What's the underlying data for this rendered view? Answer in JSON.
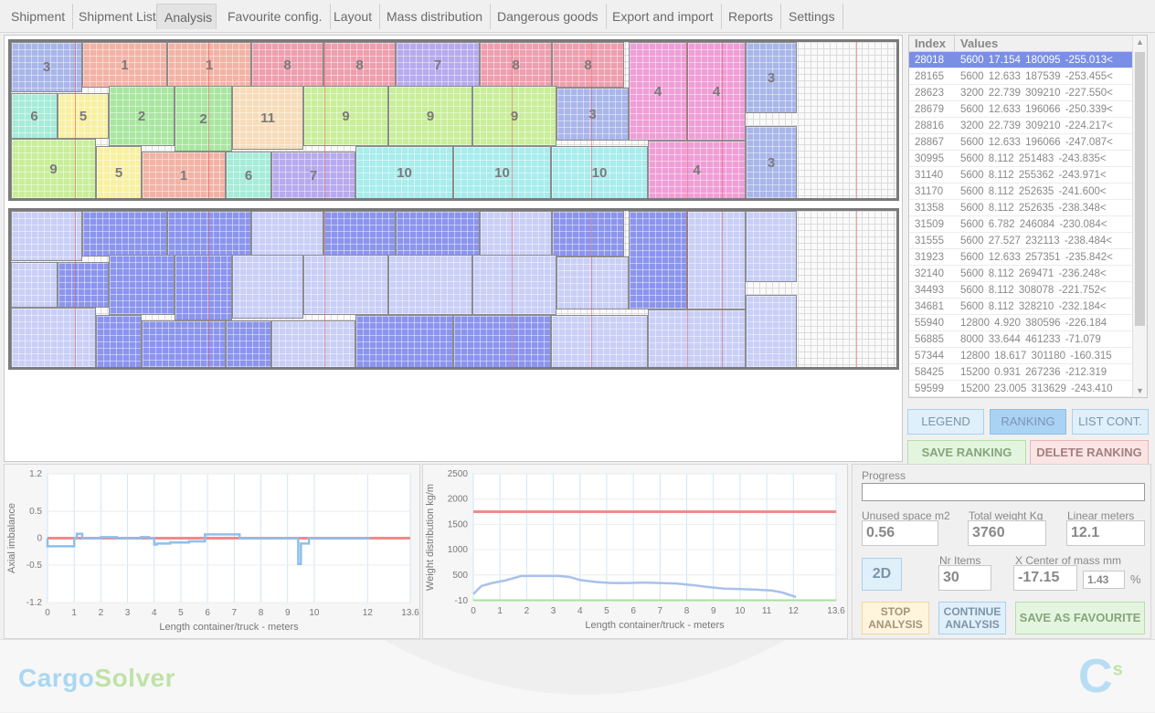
{
  "tabs": [
    {
      "label": "Shipment"
    },
    {
      "label": "Shipment List"
    },
    {
      "label": "Analysis"
    },
    {
      "label": "Favourite config."
    },
    {
      "label": "Layout"
    },
    {
      "label": "Mass distribution"
    },
    {
      "label": "Dangerous goods"
    },
    {
      "label": "Export and import"
    },
    {
      "label": "Reports"
    },
    {
      "label": "Settings"
    }
  ],
  "active_tab": "Analysis",
  "layout_top": {
    "boxes": [
      {
        "label": "3",
        "color": "#a9b6ea"
      },
      {
        "label": "1",
        "color": "#f2b3a6"
      },
      {
        "label": "1",
        "color": "#f2b3a6"
      },
      {
        "label": "8",
        "color": "#ee9fae"
      },
      {
        "label": "8",
        "color": "#ee9fae"
      },
      {
        "label": "7",
        "color": "#b7aaee"
      },
      {
        "label": "8",
        "color": "#ee9fae"
      },
      {
        "label": "8",
        "color": "#ee9fae"
      },
      {
        "label": "4",
        "color": "#ef9ed7"
      },
      {
        "label": "4",
        "color": "#ef9ed7"
      },
      {
        "label": "3",
        "color": "#a9b6ea"
      },
      {
        "label": "6",
        "color": "#a6ecd8"
      },
      {
        "label": "5",
        "color": "#f7f0a2"
      },
      {
        "label": "2",
        "color": "#a9e6a0"
      },
      {
        "label": "2",
        "color": "#a9e6a0"
      },
      {
        "label": "11",
        "color": "#f7dcba"
      },
      {
        "label": "9",
        "color": "#c9ee9a"
      },
      {
        "label": "9",
        "color": "#c9ee9a"
      },
      {
        "label": "9",
        "color": "#c9ee9a"
      },
      {
        "label": "3",
        "color": "#a9b6ea"
      },
      {
        "label": "9",
        "color": "#c9ee9a"
      },
      {
        "label": "5",
        "color": "#f7f0a2"
      },
      {
        "label": "1",
        "color": "#f2b3a6"
      },
      {
        "label": "6",
        "color": "#a6ecd8"
      },
      {
        "label": "7",
        "color": "#b7aaee"
      },
      {
        "label": "10",
        "color": "#a8ecec"
      },
      {
        "label": "10",
        "color": "#a8ecec"
      },
      {
        "label": "10",
        "color": "#a8ecec"
      },
      {
        "label": "4",
        "color": "#ef9ed7"
      },
      {
        "label": "3",
        "color": "#a9b6ea"
      }
    ]
  },
  "ranking": {
    "header_index": "Index",
    "header_values": "Values",
    "rows": [
      {
        "index": "28018",
        "values": "5600  17.154  180095  -255.013<"
      },
      {
        "index": "28165",
        "values": "5600  12.633  187539  -253.455<"
      },
      {
        "index": "28623",
        "values": "3200  22.739  309210  -227.550<"
      },
      {
        "index": "28679",
        "values": "5600  12.633  196066  -250.339<"
      },
      {
        "index": "28816",
        "values": "3200  22.739  309210  -224.217<"
      },
      {
        "index": "28867",
        "values": "5600  12.633  196066  -247.087<"
      },
      {
        "index": "30995",
        "values": "5600  8.112  251483  -243.835<"
      },
      {
        "index": "31140",
        "values": "5600  8.112  255362  -243.971<"
      },
      {
        "index": "31170",
        "values": "5600  8.112  252635  -241.600<"
      },
      {
        "index": "31358",
        "values": "5600  8.112  252635  -238.348<"
      },
      {
        "index": "31509",
        "values": "5600  6.782  246084  -230.084<"
      },
      {
        "index": "31555",
        "values": "5600  27.527  232113  -238.484<"
      },
      {
        "index": "31923",
        "values": "5600  12.633  257351  -235.842<"
      },
      {
        "index": "32140",
        "values": "5600  8.112  269471  -236.248<"
      },
      {
        "index": "34493",
        "values": "5600  8.112  308078  -221.752<"
      },
      {
        "index": "34681",
        "values": "5600  8.112  328210  -232.184<"
      },
      {
        "index": "55940",
        "values": "12800  4.920  380596  -226.184"
      },
      {
        "index": "56885",
        "values": "8000  33.644  461233  -71.079"
      },
      {
        "index": "57344",
        "values": "12800  18.617  301180  -160.315"
      },
      {
        "index": "58425",
        "values": "15200  0.931  267236  -212.319"
      },
      {
        "index": "59599",
        "values": "15200  23.005  313629  -243.410"
      }
    ]
  },
  "buttons": {
    "legend": "LEGEND",
    "ranking": "RANKING",
    "list_cont": "LIST CONT.",
    "save_ranking": "SAVE RANKING",
    "delete_ranking": "DELETE RANKING",
    "view_2d": "2D",
    "stop_1": "STOP",
    "stop_2": "ANALYSIS",
    "continue_1": "CONTINUE",
    "continue_2": "ANALYSIS",
    "save_favourite": "SAVE AS FAVOURITE"
  },
  "stats": {
    "progress_label": "Progress",
    "progress_value": 0,
    "unused_space_label": "Unused space m2",
    "unused_space": "0.56",
    "total_weight_label": "Total weight Kg",
    "total_weight": "3760",
    "linear_meters_label": "Linear meters",
    "linear_meters": "12.1",
    "nr_items_label": "Nr Items",
    "nr_items": "30",
    "x_center_label": "X Center of mass mm",
    "x_center": "-17.15",
    "x_center_pct": "1.43",
    "pct_sign": "%"
  },
  "chart_data": [
    {
      "type": "line",
      "ylabel": "Axial imbalance",
      "xlabel": "Length container/truck - meters",
      "x_ticks": [
        "0",
        "1",
        "2",
        "3",
        "4",
        "5",
        "6",
        "7",
        "8",
        "9",
        "10",
        "12",
        "13.6"
      ],
      "x_tick_values": [
        0,
        1,
        2,
        3,
        4,
        5,
        6,
        7,
        8,
        9,
        10,
        12,
        13.6
      ],
      "y_ticks": [
        "1.2",
        "0.5",
        "0",
        "-0.5",
        "-1.2"
      ],
      "y_tick_values": [
        1.2,
        0.5,
        0,
        -0.5,
        -1.2
      ],
      "xlim": [
        0,
        13.6
      ],
      "ylim": [
        -1.2,
        1.2
      ],
      "reference_line": 0,
      "series": [
        {
          "x": [
            0,
            0,
            1,
            1,
            1.1,
            1.1,
            1.3,
            1.3,
            2,
            2,
            2.6,
            2.6,
            3.5,
            3.5,
            3.8,
            3.8,
            4,
            4,
            4.1,
            4.1,
            4.6,
            4.6,
            5.3,
            5.3,
            5.9,
            5.9,
            7.2,
            7.2,
            9.4,
            9.4,
            9.5,
            9.5,
            9.8,
            9.8,
            12.1
          ],
          "y": [
            0,
            -0.15,
            -0.15,
            0,
            0,
            0.08,
            0.08,
            0,
            0,
            0.02,
            0.02,
            0,
            0,
            0.02,
            0.02,
            0,
            0,
            -0.12,
            -0.12,
            -0.1,
            -0.1,
            -0.08,
            -0.08,
            -0.06,
            -0.06,
            0.07,
            0.07,
            0,
            0,
            -0.48,
            -0.48,
            -0.1,
            -0.1,
            0,
            0
          ]
        }
      ]
    },
    {
      "type": "line",
      "ylabel": "Weight distribution kg/m",
      "xlabel": "Length container/truck - meters",
      "x_ticks": [
        "0",
        "1",
        "2",
        "3",
        "4",
        "5",
        "6",
        "7",
        "8",
        "9",
        "10",
        "11",
        "12",
        "13.6"
      ],
      "x_tick_values": [
        0,
        1,
        2,
        3,
        4,
        5,
        6,
        7,
        8,
        9,
        10,
        11,
        12,
        13.6
      ],
      "y_ticks": [
        "2500",
        "2000",
        "1500",
        "1000",
        "500",
        "-10"
      ],
      "y_tick_values": [
        2500,
        2000,
        1500,
        1000,
        500,
        -10
      ],
      "ylim": [
        -10,
        2500
      ],
      "xlim": [
        0,
        13.6
      ],
      "limit_line": 1750,
      "series": [
        {
          "x": [
            0,
            0.3,
            0.7,
            1.2,
            1.8,
            2.5,
            3.2,
            3.6,
            4,
            4.6,
            5.2,
            5.8,
            6.4,
            7,
            7.6,
            8.2,
            8.8,
            9.4,
            10,
            10.6,
            11.2,
            11.6,
            12,
            12.1
          ],
          "y": [
            120,
            280,
            340,
            390,
            480,
            480,
            480,
            460,
            400,
            360,
            340,
            340,
            350,
            340,
            330,
            300,
            260,
            230,
            220,
            210,
            190,
            150,
            80,
            60
          ]
        },
        {
          "x": [
            0,
            13.6
          ],
          "y": [
            0,
            0
          ]
        }
      ]
    }
  ],
  "brand": {
    "name_part1": "Cargo",
    "name_part2": "Solver",
    "logo_letter": "C",
    "logo_super": "s"
  }
}
